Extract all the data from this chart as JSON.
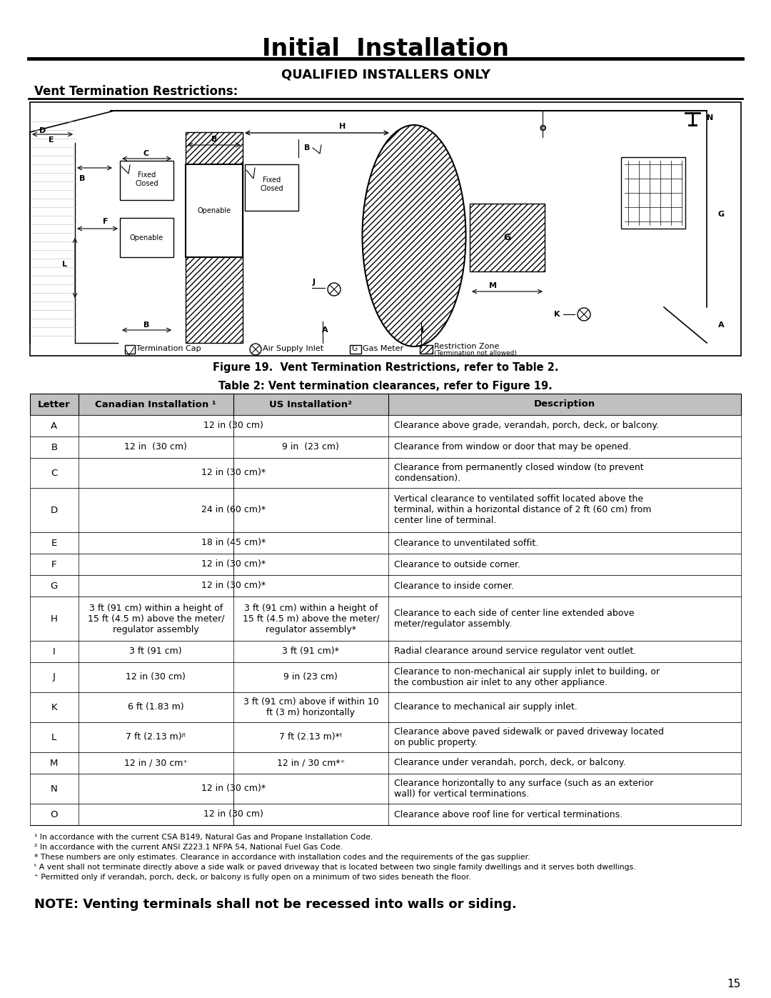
{
  "title": "Initial  Installation",
  "subtitle": "QUALIFIED INSTALLERS ONLY",
  "section_title": "Vent Termination Restrictions:",
  "figure_caption": "Figure 19.  Vent Termination Restrictions, refer to Table 2.",
  "table_title": "Table 2: Vent termination clearances, refer to Figure 19.",
  "table_headers": [
    "Letter",
    "Canadian Installation ¹",
    "US Installation²",
    "Description"
  ],
  "table_rows": [
    [
      "A",
      "12 in (30 cm)",
      "",
      "Clearance above grade, verandah, porch, deck, or balcony."
    ],
    [
      "B",
      "12 in  (30 cm)",
      "9 in  (23 cm)",
      "Clearance from window or door that may be opened."
    ],
    [
      "C",
      "12 in (30 cm)*",
      "",
      "Clearance from permanently closed window (to prevent\ncondensation)."
    ],
    [
      "D",
      "24 in (60 cm)*",
      "",
      "Vertical clearance to ventilated soffit located above the\nterminal, within a horizontal distance of 2 ft (60 cm) from\ncenter line of terminal."
    ],
    [
      "E",
      "18 in (45 cm)*",
      "",
      "Clearance to unventilated soffit."
    ],
    [
      "F",
      "12 in (30 cm)*",
      "",
      "Clearance to outside corner."
    ],
    [
      "G",
      "12 in (30 cm)*",
      "",
      "Clearance to inside corner."
    ],
    [
      "H",
      "3 ft (91 cm) within a height of\n15 ft (4.5 m) above the meter/\nregulator assembly",
      "3 ft (91 cm) within a height of\n15 ft (4.5 m) above the meter/\nregulator assembly*",
      "Clearance to each side of center line extended above\nmeter/regulator assembly."
    ],
    [
      "I",
      "3 ft (91 cm)",
      "3 ft (91 cm)*",
      "Radial clearance around service regulator vent outlet."
    ],
    [
      "J",
      "12 in (30 cm)",
      "9 in (23 cm)",
      "Clearance to non-mechanical air supply inlet to building, or\nthe combustion air inlet to any other appliance."
    ],
    [
      "K",
      "6 ft (1.83 m)",
      "3 ft (91 cm) above if within 10\nft (3 m) horizontally",
      "Clearance to mechanical air supply inlet."
    ],
    [
      "L",
      "7 ft (2.13 m)ʲᵗ",
      "7 ft (2.13 m)*ᵗ",
      "Clearance above paved sidewalk or paved driveway located\non public property."
    ],
    [
      "M",
      "12 in / 30 cm⁺",
      "12 in / 30 cm*⁺",
      "Clearance under verandah, porch, deck, or balcony."
    ],
    [
      "N",
      "12 in (30 cm)*",
      "",
      "Clearance horizontally to any surface (such as an exterior\nwall) for vertical terminations."
    ],
    [
      "O",
      "12 in (30 cm)",
      "",
      "Clearance above roof line for vertical terminations."
    ]
  ],
  "footnotes": [
    "¹ In accordance with the current CSA B149, Natural Gas and Propane Installation Code.",
    "² In accordance with the current ANSI Z223.1 NFPA 54, National Fuel Gas Code.",
    "* These numbers are only estimates. Clearance in accordance with installation codes and the requirements of the gas supplier.",
    "ᵗ A vent shall not terminate directly above a side walk or paved driveway that is located between two single family dwellings and it serves both dwellings.",
    "⁺ Permitted only if verandah, porch, deck, or balcony is fully open on a minimum of two sides beneath the floor."
  ],
  "note": "NOTE: Venting terminals shall not be recessed into walls or siding.",
  "page_number": "15",
  "bg_color": "#ffffff",
  "text_color": "#000000"
}
